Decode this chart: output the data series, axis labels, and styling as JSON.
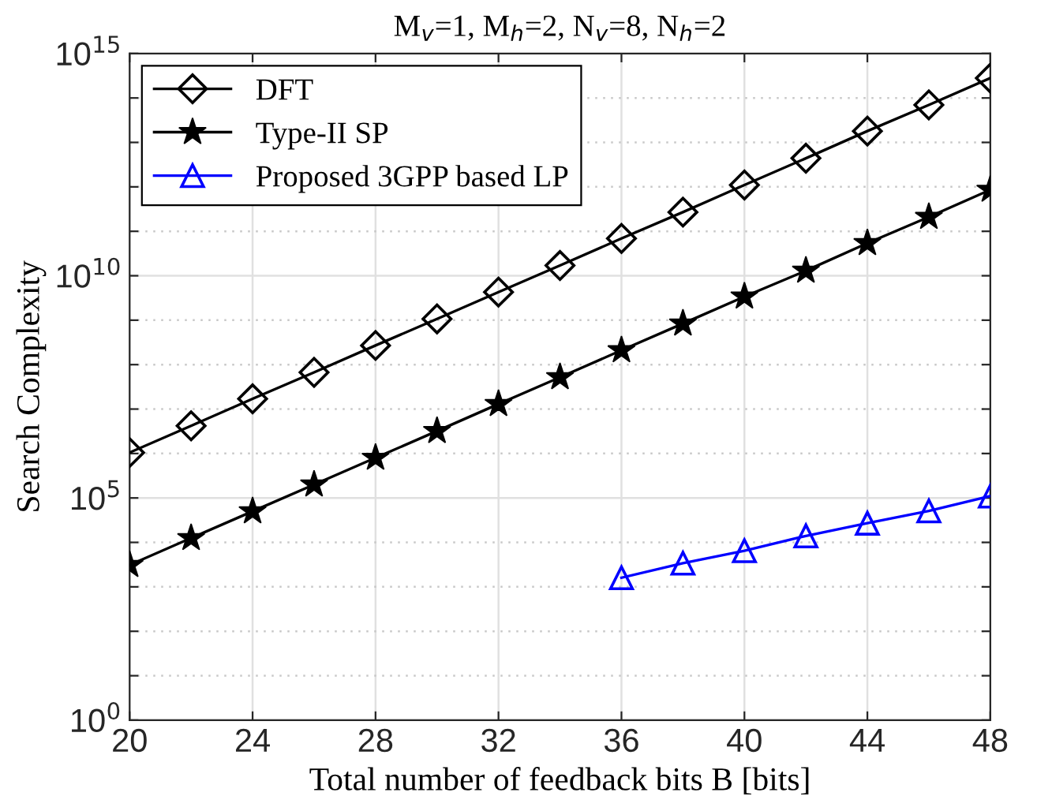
{
  "chart_data": {
    "type": "line",
    "title": "M$_{v}$=1, M$_{h}$=2, N$_{v}$=8, N$_{h}$=2",
    "xlabel": "Total number of feedback bits B [bits]",
    "ylabel": "Search Complexity",
    "log": "y",
    "grid": true,
    "legend": "top left",
    "xlim": [
      20,
      48
    ],
    "xticks": [
      20,
      24,
      28,
      32,
      36,
      40,
      44,
      48
    ],
    "ylim": [
      1,
      1000000000000000.0
    ],
    "yticks": [
      {
        "value": 1,
        "label": "10$^{0}$"
      },
      {
        "value": 10,
        "label": null
      },
      {
        "value": 100,
        "label": null
      },
      {
        "value": 1000,
        "label": null
      },
      {
        "value": 10000,
        "label": null
      },
      {
        "value": 100000,
        "label": "10$^{5}$"
      },
      {
        "value": 1000000.0,
        "label": null
      },
      {
        "value": 10000000.0,
        "label": null
      },
      {
        "value": 100000000.0,
        "label": null
      },
      {
        "value": 1000000000.0,
        "label": null
      },
      {
        "value": 10000000000.0,
        "label": "10$^{10}$"
      },
      {
        "value": 100000000000.0,
        "label": null
      },
      {
        "value": 1000000000000.0,
        "label": null
      },
      {
        "value": 10000000000000.0,
        "label": null
      },
      {
        "value": 100000000000000.0,
        "label": null
      },
      {
        "value": 1000000000000000.0,
        "label": "10$^{15}$"
      }
    ],
    "series": [
      {
        "name": "DFT",
        "color": "#000000",
        "marker": "diamond",
        "x": [
          20,
          22,
          24,
          26,
          28,
          30,
          32,
          34,
          36,
          38,
          40,
          42,
          44,
          46,
          48
        ],
        "values": [
          1050000.0,
          4200000.0,
          17000000.0,
          67000000.0,
          270000000.0,
          1070000000.0,
          4300000000.0,
          17000000000.0,
          69000000000.0,
          270000000000.0,
          1100000000000.0,
          4400000000000.0,
          18000000000000.0,
          70000000000000.0,
          280000000000000.0
        ]
      },
      {
        "name": "Type-II SP",
        "color": "#000000",
        "marker": "star",
        "x": [
          20,
          22,
          24,
          26,
          28,
          30,
          32,
          34,
          36,
          38,
          40,
          42,
          44,
          46,
          48
        ],
        "values": [
          3100.0,
          12500.0,
          50000.0,
          200000.0,
          800000.0,
          3200000.0,
          13000000.0,
          52000000.0,
          210000000.0,
          840000000.0,
          3400000000.0,
          13000000000.0,
          54000000000.0,
          210000000000.0,
          860000000000.0
        ]
      },
      {
        "name": "Proposed 3GPP based LP",
        "color": "#0000ff",
        "marker": "triangle",
        "x": [
          36,
          38,
          40,
          42,
          44,
          46,
          48
        ],
        "values": [
          1600,
          3400,
          6500,
          14000.0,
          27000.0,
          51000.0,
          110000.0
        ]
      }
    ]
  }
}
